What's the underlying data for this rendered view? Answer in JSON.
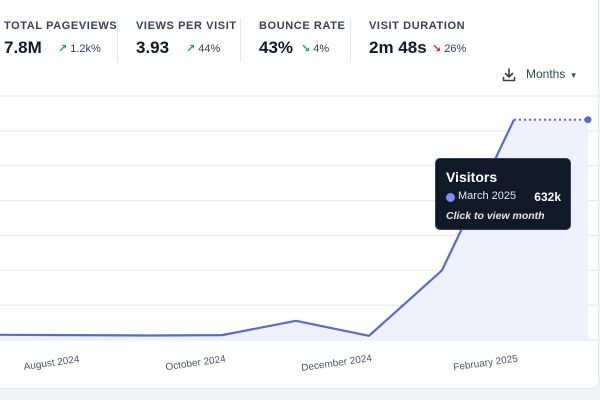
{
  "stats": [
    {
      "label": "TOTAL PAGEVIEWS",
      "value": "7.8M",
      "change": "1.2k%",
      "direction": "up"
    },
    {
      "label": "VIEWS PER VISIT",
      "value": "3.93",
      "change": "44%",
      "direction": "up"
    },
    {
      "label": "BOUNCE RATE",
      "value": "43%",
      "change": "4%",
      "direction": "down"
    },
    {
      "label": "VISIT DURATION",
      "value": "2m 48s",
      "change": "26%",
      "direction": "down"
    }
  ],
  "controls": {
    "interval_label": "Months",
    "download_icon": "download-icon",
    "chevron_icon": "chevron-down-icon"
  },
  "tooltip": {
    "title": "Visitors",
    "date": "March 2025",
    "value": "632k",
    "hint": "Click to view month"
  },
  "colors": {
    "line": "#5b6bc0",
    "area": "#eef0fb",
    "grid": "#e5e7eb",
    "up": "#16a34a",
    "down": "#dc2626",
    "tooltip_bg": "#111827"
  },
  "chart_data": {
    "type": "line",
    "x_ticks": [
      "August 2024",
      "October 2024",
      "December 2024",
      "February 2025"
    ],
    "series": [
      {
        "name": "Visitors",
        "x": [
          "2024-07",
          "2024-08",
          "2024-09",
          "2024-10",
          "2024-11",
          "2024-12",
          "2025-01",
          "2025-02",
          "2025-03"
        ],
        "values": [
          15,
          14,
          13,
          14,
          55,
          12,
          200,
          632,
          632
        ]
      }
    ],
    "current_period_dotted": true,
    "ylim": [
      0,
      700
    ],
    "grid": true
  }
}
